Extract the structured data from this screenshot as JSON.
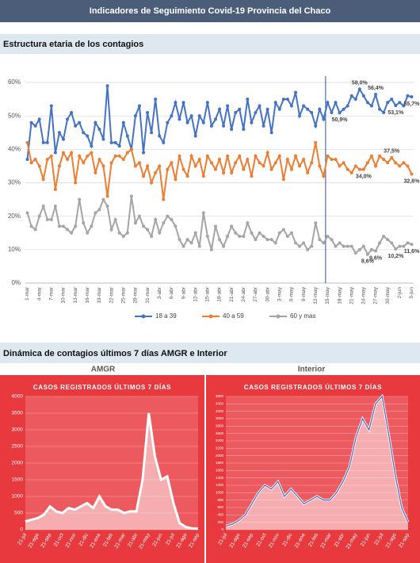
{
  "header": {
    "title": "Indicadores de Seguimiento Covid-19 Provincia del Chaco"
  },
  "sections": [
    "Estructura etaria de los contagios",
    "Dinámica de contagios últimos 7 días AMGR e Interior"
  ],
  "chart_data": [
    {
      "type": "line",
      "categories": [
        "1-mar",
        null,
        null,
        "4-mar",
        null,
        null,
        "7-mar",
        null,
        null,
        "10-mar",
        null,
        null,
        "13-mar",
        null,
        null,
        "16-mar",
        null,
        null,
        "19-mar",
        null,
        null,
        "22-mar",
        null,
        null,
        "25-mar",
        null,
        null,
        "28-mar",
        null,
        null,
        "31-mar",
        null,
        null,
        "3-abr",
        null,
        null,
        "6-abr",
        null,
        null,
        "9-abr",
        null,
        null,
        "12-abr",
        null,
        null,
        "15-abr",
        null,
        null,
        "18-abr",
        null,
        null,
        "21-abr",
        null,
        null,
        "24-abr",
        null,
        null,
        "27-abr",
        null,
        null,
        "30-abr",
        null,
        null,
        "3-may",
        null,
        null,
        "6-may",
        null,
        null,
        "9-may",
        null,
        null,
        "12-may",
        null,
        null,
        "15-may",
        null,
        null,
        "18-may",
        null,
        null,
        "21-may",
        null,
        null,
        "24-may",
        null,
        null,
        "27-may",
        null,
        null,
        "30-may",
        null,
        null,
        "2-jun",
        null,
        null,
        "5-jun"
      ],
      "ylim": [
        0,
        60
      ],
      "yticks": [
        {
          "value": 0,
          "label": "0%"
        },
        {
          "value": 10,
          "label": "10%"
        },
        {
          "value": 20,
          "label": "20%"
        },
        {
          "value": 30,
          "label": "30%"
        },
        {
          "value": 40,
          "label": "40%"
        },
        {
          "value": 50,
          "label": "50%"
        },
        {
          "value": 60,
          "label": "60%"
        }
      ],
      "grid": true,
      "legend": "bottom",
      "series": [
        {
          "name": "18 a 39",
          "color": "#4472c4",
          "values": [
            37,
            48,
            47,
            49,
            42,
            42,
            53,
            39,
            45,
            43,
            49,
            51,
            47,
            48,
            45,
            44,
            41,
            48,
            46,
            43,
            59,
            42,
            42,
            41,
            48,
            44,
            40,
            50,
            53,
            39,
            51,
            45,
            55,
            44,
            42,
            48,
            50,
            54,
            49,
            54,
            48,
            50,
            44,
            50,
            48,
            54,
            47,
            49,
            52,
            47,
            53,
            46,
            51,
            52,
            46,
            55,
            48,
            51,
            53,
            47,
            52,
            45,
            54,
            52,
            55,
            55,
            53,
            57,
            50,
            53,
            52,
            51,
            47,
            52,
            49,
            54,
            51,
            54,
            50.9,
            52,
            53,
            56,
            55,
            58,
            56,
            54,
            53,
            56.4,
            52,
            51,
            54,
            55,
            53.1,
            54,
            53,
            56,
            55.7
          ],
          "value_labels": [
            null,
            null,
            null,
            null,
            null,
            null,
            null,
            null,
            null,
            null,
            null,
            null,
            null,
            null,
            null,
            null,
            null,
            null,
            null,
            null,
            null,
            null,
            null,
            null,
            null,
            null,
            null,
            null,
            null,
            null,
            null,
            null,
            null,
            null,
            null,
            null,
            null,
            null,
            null,
            null,
            null,
            null,
            null,
            null,
            null,
            null,
            null,
            null,
            null,
            null,
            null,
            null,
            null,
            null,
            null,
            null,
            null,
            null,
            null,
            null,
            null,
            null,
            null,
            null,
            null,
            null,
            null,
            null,
            null,
            null,
            null,
            null,
            null,
            null,
            null,
            null,
            null,
            null,
            "50,9%",
            null,
            null,
            null,
            null,
            "58,0%",
            null,
            null,
            null,
            "56,4%",
            null,
            null,
            null,
            null,
            "53,1%",
            null,
            null,
            null,
            "55,7%"
          ]
        },
        {
          "name": "40 a 59",
          "color": "#ed7d31",
          "values": [
            42,
            36,
            37,
            35,
            31,
            37,
            38,
            28,
            35,
            39,
            37,
            39,
            30,
            38,
            36,
            38,
            39,
            33,
            37,
            35,
            26,
            36,
            38,
            38,
            37,
            39,
            40,
            35,
            36,
            32,
            35,
            30,
            33,
            35,
            25,
            34,
            36,
            31,
            38,
            34,
            32,
            38,
            35,
            37,
            32,
            38,
            36,
            34,
            37,
            33,
            38,
            33,
            36,
            38,
            34,
            37,
            32,
            38,
            36,
            35,
            39,
            34,
            36,
            38,
            31,
            37,
            34,
            38,
            35,
            37,
            33,
            36,
            42,
            35,
            32,
            38,
            37,
            37,
            35,
            36,
            34,
            33,
            35,
            34,
            34,
            36,
            38,
            35,
            38,
            37,
            36,
            37.5,
            36,
            35,
            36,
            35,
            32.6
          ],
          "value_labels": [
            null,
            null,
            null,
            null,
            null,
            null,
            null,
            null,
            null,
            null,
            null,
            null,
            null,
            null,
            null,
            null,
            null,
            null,
            null,
            null,
            null,
            null,
            null,
            null,
            null,
            null,
            null,
            null,
            null,
            null,
            null,
            null,
            null,
            null,
            null,
            null,
            null,
            null,
            null,
            null,
            null,
            null,
            null,
            null,
            null,
            null,
            null,
            null,
            null,
            null,
            null,
            null,
            null,
            null,
            null,
            null,
            null,
            null,
            null,
            null,
            null,
            null,
            null,
            null,
            null,
            null,
            null,
            null,
            null,
            null,
            null,
            null,
            null,
            null,
            null,
            null,
            null,
            null,
            null,
            null,
            null,
            null,
            null,
            null,
            "34,0%",
            null,
            null,
            null,
            null,
            null,
            null,
            "37,5%",
            null,
            null,
            null,
            null,
            "32,6%"
          ]
        },
        {
          "name": "60 y mas",
          "color": "#a5a5a5",
          "values": [
            21,
            17,
            16,
            20,
            23,
            19,
            19,
            23,
            17,
            17,
            16,
            15,
            17,
            25,
            18,
            15,
            17,
            21,
            22,
            25,
            23,
            16,
            19,
            15,
            14,
            15,
            26,
            18,
            20,
            17,
            16,
            14,
            19,
            15,
            18,
            20,
            19,
            17,
            13,
            11,
            13,
            12,
            15,
            11,
            21,
            14,
            10,
            17,
            13,
            11,
            14,
            17,
            15,
            14,
            14,
            18,
            15,
            13,
            15,
            14,
            13,
            13,
            12,
            15,
            16,
            14,
            15,
            12,
            11,
            12,
            10,
            11,
            18,
            13,
            12,
            14,
            13,
            11,
            12,
            11,
            11,
            11,
            9,
            10,
            11,
            8.6,
            10,
            9.6,
            12,
            14,
            13,
            12,
            10.2,
            11,
            11,
            12,
            11.6
          ],
          "value_labels": [
            null,
            null,
            null,
            null,
            null,
            null,
            null,
            null,
            null,
            null,
            null,
            null,
            null,
            null,
            null,
            null,
            null,
            null,
            null,
            null,
            null,
            null,
            null,
            null,
            null,
            null,
            null,
            null,
            null,
            null,
            null,
            null,
            null,
            null,
            null,
            null,
            null,
            null,
            null,
            null,
            null,
            null,
            null,
            null,
            null,
            null,
            null,
            null,
            null,
            null,
            null,
            null,
            null,
            null,
            null,
            null,
            null,
            null,
            null,
            null,
            null,
            null,
            null,
            null,
            null,
            null,
            null,
            null,
            null,
            null,
            null,
            null,
            null,
            null,
            null,
            null,
            null,
            null,
            null,
            null,
            null,
            null,
            null,
            null,
            null,
            "8,6%",
            null,
            "9,6%",
            null,
            null,
            null,
            null,
            "10,2%",
            null,
            null,
            null,
            "11,6%"
          ]
        }
      ]
    },
    {
      "type": "area",
      "title": "AMGR",
      "subtitle": "CASOS REGISTRADOS ÚLTIMOS 7 DÍAS",
      "color": "#ffffff",
      "categories": [
        "21-jul",
        null,
        "21-ago",
        null,
        "21-sep",
        null,
        "21-oct",
        null,
        "21-nov",
        null,
        "21-dic",
        null,
        "21-ene",
        null,
        "21-feb",
        null,
        "21-mar",
        null,
        "21-abr",
        null,
        "21-may",
        null,
        "21-jun",
        null,
        "21-jul",
        null,
        "21-ago",
        null,
        "21-sep"
      ],
      "values": [
        250,
        300,
        350,
        450,
        700,
        550,
        500,
        650,
        600,
        700,
        800,
        650,
        1000,
        700,
        600,
        600,
        500,
        550,
        550,
        1500,
        3500,
        2200,
        1500,
        1600,
        800,
        200,
        80,
        40,
        30
      ],
      "ylim": [
        0,
        4000
      ],
      "yticks": [
        0,
        500,
        1000,
        1500,
        2000,
        2500,
        3000,
        3500,
        4000
      ],
      "grid": true
    },
    {
      "type": "area",
      "title": "Interior",
      "subtitle": "CASOS REGISTRADOS ÚLTIMOS 7 DÍAS",
      "color": "#5b6bb5",
      "categories": [
        "21-jul",
        null,
        "21-ago",
        null,
        "21-sep",
        null,
        "21-oct",
        null,
        "21-nov",
        null,
        "21-dic",
        null,
        "21-ene",
        null,
        "21-feb",
        null,
        "21-mar",
        null,
        "21-abr",
        null,
        "21-may",
        null,
        "21-jun",
        null,
        "21-jul",
        null,
        "21-ago",
        null,
        "21-sep"
      ],
      "values": [
        100,
        150,
        250,
        400,
        700,
        1000,
        1200,
        1100,
        1300,
        900,
        1100,
        900,
        700,
        800,
        900,
        800,
        800,
        1000,
        1300,
        1700,
        2500,
        3000,
        2700,
        3400,
        3600,
        2600,
        1500,
        600,
        200
      ],
      "ylim": [
        0,
        3600
      ],
      "yticks": [
        0,
        200,
        400,
        600,
        800,
        1000,
        1200,
        1400,
        1600,
        1800,
        2000,
        2200,
        2400,
        2600,
        2800,
        3000,
        3200,
        3400,
        3600
      ],
      "grid": true
    }
  ]
}
